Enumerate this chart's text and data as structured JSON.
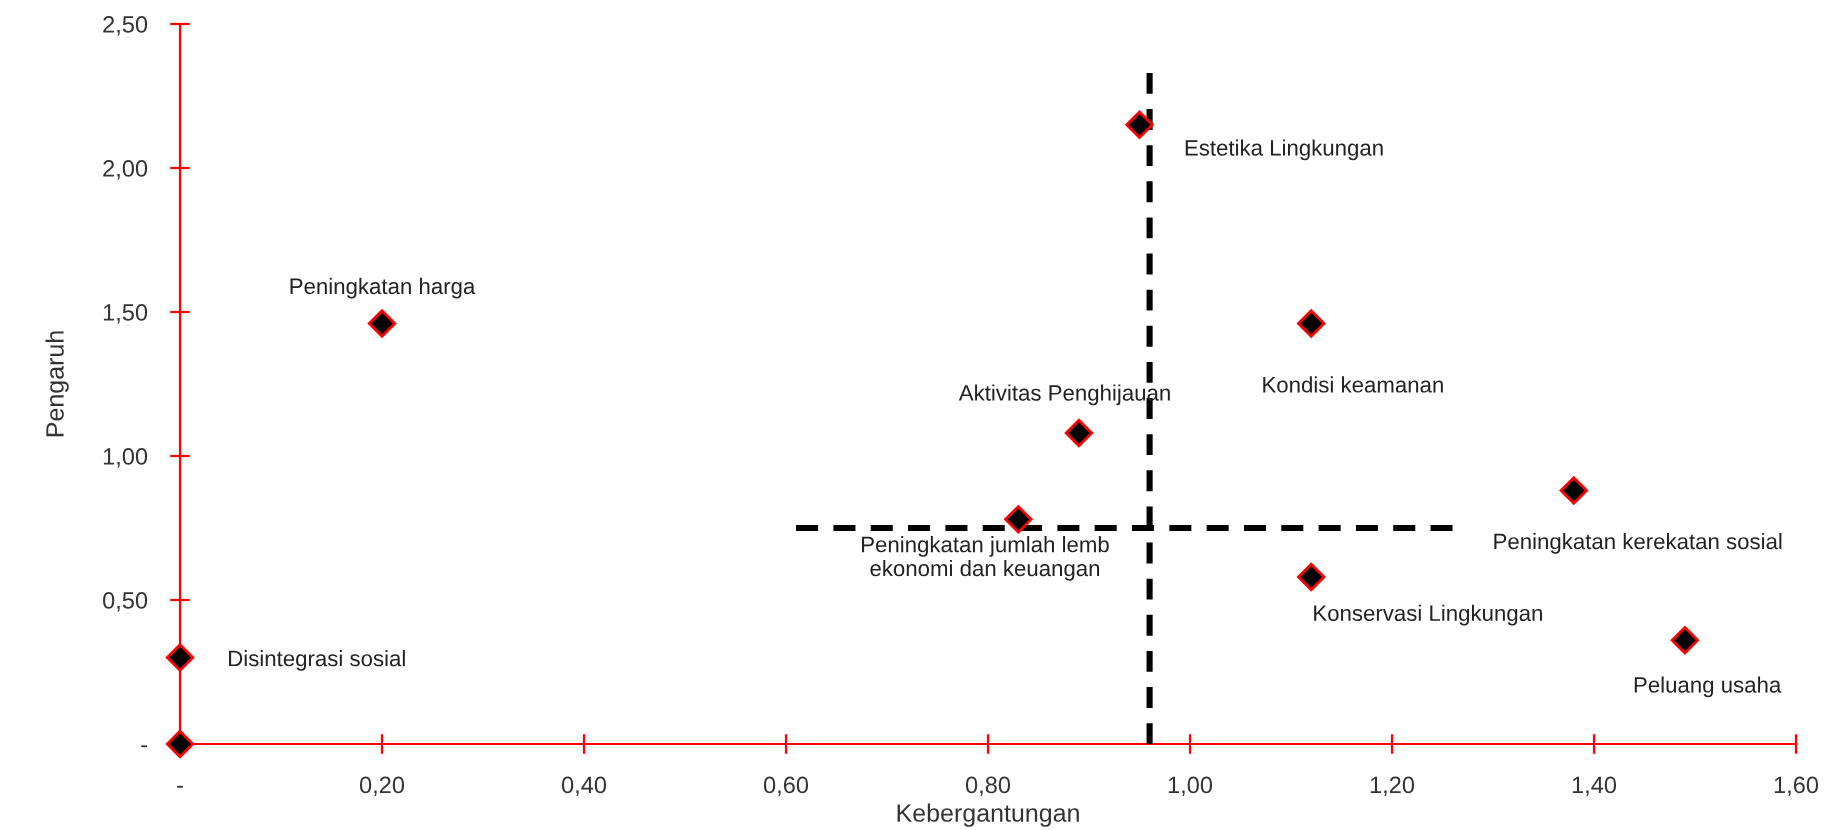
{
  "chart_data": {
    "type": "scatter",
    "xlabel": "Kebergantungan",
    "ylabel": "Pengaruh",
    "xlim": [
      0,
      1.6
    ],
    "ylim": [
      0,
      2.5
    ],
    "xticks": [
      {
        "value": 0,
        "label": "-"
      },
      {
        "value": 0.2,
        "label": "0,20"
      },
      {
        "value": 0.4,
        "label": "0,40"
      },
      {
        "value": 0.6,
        "label": "0,60"
      },
      {
        "value": 0.8,
        "label": "0,80"
      },
      {
        "value": 1.0,
        "label": "1,00"
      },
      {
        "value": 1.2,
        "label": "1,20"
      },
      {
        "value": 1.4,
        "label": "1,40"
      },
      {
        "value": 1.6,
        "label": "1,60"
      }
    ],
    "yticks": [
      {
        "value": 0,
        "label": "-"
      },
      {
        "value": 0.5,
        "label": "0,50"
      },
      {
        "value": 1.0,
        "label": "1,00"
      },
      {
        "value": 1.5,
        "label": "1,50"
      },
      {
        "value": 2.0,
        "label": "2,00"
      },
      {
        "value": 2.5,
        "label": "2,50"
      }
    ],
    "grid": false,
    "legend": false,
    "marker": "diamond",
    "series": [
      {
        "color": "#000000",
        "x": [
          0.95,
          0.2,
          1.12,
          0.89,
          0.83,
          1.38,
          1.12,
          0.0,
          1.49,
          0.0
        ],
        "values": [
          2.15,
          1.46,
          1.46,
          1.08,
          0.78,
          0.88,
          0.58,
          0.3,
          0.36,
          0.0
        ]
      },
      {
        "type": "line",
        "color": "#000000",
        "line_style": "dashed",
        "marker": "none",
        "x": [
          0.96,
          0.96
        ],
        "values": [
          2.33,
          0.0
        ]
      },
      {
        "type": "line",
        "color": "#000000",
        "line_style": "dashed",
        "marker": "none",
        "x": [
          0.61,
          1.26
        ],
        "values": [
          0.75,
          0.75
        ]
      }
    ],
    "annotations": [
      {
        "text": "Estetika Lingkungan",
        "x": 0.95,
        "y": 2.15
      },
      {
        "text": "Peningkatan harga",
        "x": 0.2,
        "y": 1.46
      },
      {
        "text": "Kondisi keamanan",
        "x": 1.12,
        "y": 1.46
      },
      {
        "text": "Aktivitas Penghijauan",
        "x": 0.89,
        "y": 1.08
      },
      {
        "text": "Peningkatan jumlah lemb\nekonomi dan keuangan",
        "x": 0.83,
        "y": 0.78
      },
      {
        "text": "Peningkatan kerekatan sosial",
        "x": 1.38,
        "y": 0.88
      },
      {
        "text": "Konservasi Lingkungan",
        "x": 1.12,
        "y": 0.58
      },
      {
        "text": "Disintegrasi sosial",
        "x": 0.0,
        "y": 0.3
      },
      {
        "text": "Peluang usaha",
        "x": 1.49,
        "y": 0.36
      }
    ]
  }
}
